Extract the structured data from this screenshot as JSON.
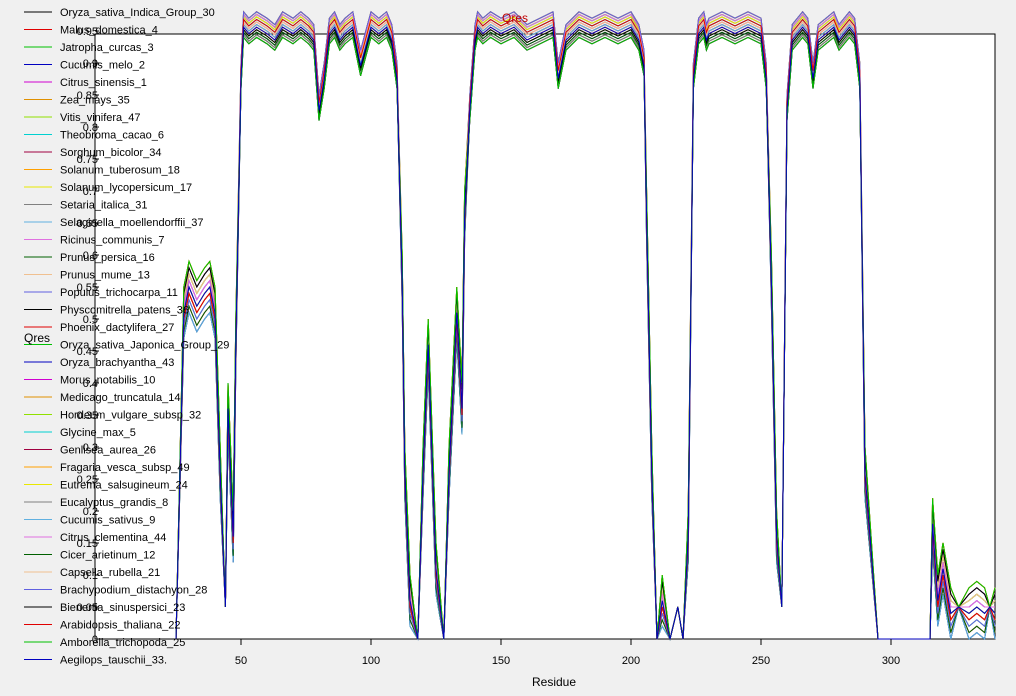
{
  "chart_data": {
    "type": "line",
    "title": "Qres",
    "xlabel": "Residue",
    "ylabel": "Qres",
    "xlim": [
      0,
      340
    ],
    "ylim": [
      0,
      1
    ],
    "xticks": [
      50,
      100,
      150,
      200,
      250,
      300
    ],
    "yticks": [
      0,
      0.05,
      0.1,
      0.15,
      0.2,
      0.25,
      0.3,
      0.35,
      0.4,
      0.45,
      0.5,
      0.55,
      0.6,
      0.65,
      0.7,
      0.75,
      0.8,
      0.85,
      0.9,
      0.95
    ],
    "ytick_labels": [
      "0",
      "0.05",
      "0.1",
      "0.15",
      "0.2",
      "0.25",
      "0.3",
      "0.35",
      "0.4",
      "0.45",
      "0.5",
      "0.55",
      "0.6",
      "0.65",
      "0.7",
      "0.75",
      "0.8",
      "0.85",
      "0.9",
      "0.95"
    ],
    "legend_position": "left",
    "envelope": {
      "x": [
        25,
        28,
        30,
        33,
        36,
        38,
        40,
        42,
        44,
        45,
        47,
        48,
        50,
        51,
        53,
        56,
        60,
        63,
        66,
        70,
        73,
        76,
        78,
        80,
        82,
        84,
        86,
        88,
        90,
        93,
        96,
        100,
        103,
        106,
        108,
        110,
        112,
        113,
        115,
        118,
        120,
        122,
        125,
        128,
        130,
        133,
        135,
        136,
        138,
        140,
        141,
        143,
        146,
        150,
        155,
        160,
        165,
        170,
        172,
        175,
        180,
        185,
        190,
        195,
        200,
        203,
        205,
        206,
        208,
        210,
        212,
        215,
        218,
        220,
        222,
        224,
        226,
        228,
        229,
        230,
        235,
        240,
        245,
        250,
        252,
        254,
        256,
        258,
        260,
        262,
        264,
        266,
        268,
        270,
        272,
        275,
        278,
        280,
        282,
        284,
        286,
        288,
        290,
        295,
        300,
        305,
        310,
        315,
        316,
        318,
        320,
        323,
        326,
        330,
        333,
        336,
        338,
        340
      ],
      "y": [
        0,
        0.55,
        0.59,
        0.56,
        0.58,
        0.59,
        0.55,
        0.3,
        0.05,
        0.4,
        0.2,
        0.5,
        0.9,
        0.98,
        0.97,
        0.98,
        0.97,
        0.96,
        0.98,
        0.97,
        0.98,
        0.97,
        0.96,
        0.85,
        0.9,
        0.97,
        0.98,
        0.96,
        0.97,
        0.98,
        0.92,
        0.98,
        0.97,
        0.98,
        0.96,
        0.9,
        0.6,
        0.3,
        0.1,
        0,
        0.3,
        0.5,
        0.15,
        0,
        0.3,
        0.55,
        0.4,
        0.7,
        0.85,
        0.96,
        0.98,
        0.97,
        0.98,
        0.97,
        0.98,
        0.96,
        0.97,
        0.98,
        0.9,
        0.96,
        0.98,
        0.97,
        0.98,
        0.97,
        0.98,
        0.96,
        0.92,
        0.7,
        0.3,
        0,
        0.1,
        0,
        0.05,
        0,
        0.2,
        0.9,
        0.97,
        0.98,
        0.96,
        0.97,
        0.98,
        0.97,
        0.98,
        0.97,
        0.9,
        0.6,
        0.2,
        0.05,
        0.85,
        0.96,
        0.97,
        0.98,
        0.97,
        0.9,
        0.96,
        0.97,
        0.98,
        0.96,
        0.97,
        0.98,
        0.97,
        0.9,
        0.3,
        0,
        0,
        0,
        0,
        0,
        0.22,
        0.1,
        0.15,
        0.08,
        0.05,
        0.08,
        0.09,
        0.08,
        0.05,
        0.08
      ]
    },
    "series": [
      {
        "name": "Oryza_sativa_Indica_Group_30",
        "color": "#000000"
      },
      {
        "name": "Malus_domestica_4",
        "color": "#e00000"
      },
      {
        "name": "Jatropha_curcas_3",
        "color": "#00c000"
      },
      {
        "name": "Cucumis_melo_2",
        "color": "#0000c0"
      },
      {
        "name": "Citrus_sinensis_1",
        "color": "#d000d0"
      },
      {
        "name": "Zea_mays_35",
        "color": "#e09000"
      },
      {
        "name": "Vitis_vinifera_47",
        "color": "#90e000"
      },
      {
        "name": "Theobroma_cacao_6",
        "color": "#00d0d0"
      },
      {
        "name": "Sorghum_bicolor_34",
        "color": "#a00040"
      },
      {
        "name": "Solanum_tuberosum_18",
        "color": "#ffa000"
      },
      {
        "name": "Solanum_lycopersicum_17",
        "color": "#e8e800"
      },
      {
        "name": "Setaria_italica_31",
        "color": "#808080"
      },
      {
        "name": "Selaginella_moellendorffii_37",
        "color": "#60b0e0"
      },
      {
        "name": "Ricinus_communis_7",
        "color": "#e070e0"
      },
      {
        "name": "Prunus_persica_16",
        "color": "#006000"
      },
      {
        "name": "Prunus_mume_13",
        "color": "#f0c090"
      },
      {
        "name": "Populus_trichocarpa_11",
        "color": "#6060e0"
      },
      {
        "name": "Physcomitrella_patens_36",
        "color": "#000000"
      },
      {
        "name": "Phoenix_dactylifera_27",
        "color": "#e00000"
      },
      {
        "name": "Oryza_sativa_Japonica_Group_29",
        "color": "#00c000"
      },
      {
        "name": "Oryza_brachyantha_43",
        "color": "#0000c0"
      },
      {
        "name": "Morus_notabilis_10",
        "color": "#d000d0"
      },
      {
        "name": "Medicago_truncatula_14",
        "color": "#e09000"
      },
      {
        "name": "Hordeum_vulgare_subsp_32",
        "color": "#90e000"
      },
      {
        "name": "Glycine_max_5",
        "color": "#00d0d0"
      },
      {
        "name": "Genlisea_aurea_26",
        "color": "#a00040"
      },
      {
        "name": "Fragaria_vesca_subsp_49",
        "color": "#ffa000"
      },
      {
        "name": "Eutrema_salsugineum_24",
        "color": "#e8e800"
      },
      {
        "name": "Eucalyptus_grandis_8",
        "color": "#808080"
      },
      {
        "name": "Cucumis_sativus_9",
        "color": "#60b0e0"
      },
      {
        "name": "Citrus_clementina_44",
        "color": "#e070e0"
      },
      {
        "name": "Cicer_arietinum_12",
        "color": "#006000"
      },
      {
        "name": "Capsella_rubella_21",
        "color": "#f0c090"
      },
      {
        "name": "Brachypodium_distachyon_28",
        "color": "#6060e0"
      },
      {
        "name": "Bienertia_sinuspersici_23",
        "color": "#000000"
      },
      {
        "name": "Arabidopsis_thaliana_22",
        "color": "#e00000"
      },
      {
        "name": "Amborella_trichopoda_25",
        "color": "#00c000"
      },
      {
        "name": "Aegilops_tauschii_33.",
        "color": "#0000c0"
      }
    ]
  }
}
